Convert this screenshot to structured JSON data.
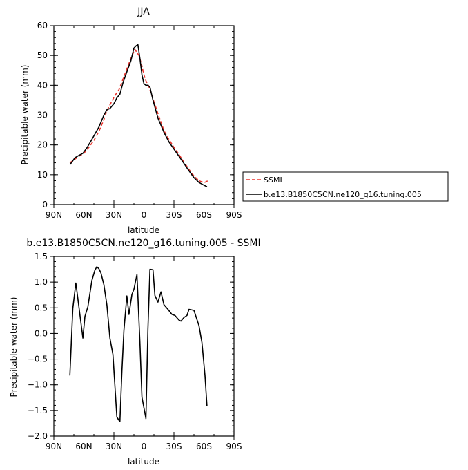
{
  "chart_data": [
    {
      "type": "line",
      "title": "JJA",
      "xlabel": "latitude",
      "ylabel": "Precipitable water (mm)",
      "xlim": [
        90,
        -90
      ],
      "ylim": [
        0,
        60
      ],
      "x_tick_values": [
        90,
        60,
        30,
        0,
        -30,
        -60,
        -90
      ],
      "x_tick_labels": [
        "90N",
        "60N",
        "30N",
        "0",
        "30S",
        "60S",
        "90S"
      ],
      "y_tick_values": [
        0,
        10,
        20,
        30,
        40,
        50,
        60
      ],
      "y_tick_labels": [
        "0",
        "10",
        "20",
        "30",
        "40",
        "50",
        "60"
      ],
      "legend_position": "right",
      "series": [
        {
          "name": "SSMI",
          "color": "#e8322b",
          "dash": "dashed",
          "x": [
            74,
            70,
            65,
            60,
            55,
            50,
            45,
            40,
            37,
            33,
            29,
            25,
            21,
            17,
            13,
            9,
            5,
            2,
            0,
            -2,
            -5,
            -10,
            -15,
            -20,
            -25,
            -30,
            -35,
            -40,
            -45,
            -50,
            -55,
            -58,
            -60,
            -63,
            -65
          ],
          "y": [
            14.0,
            15.0,
            16.2,
            17.2,
            19.2,
            21.5,
            24.5,
            28.5,
            31.5,
            34.0,
            36.5,
            38.5,
            42.0,
            45.5,
            49.0,
            52.0,
            50.0,
            46.5,
            43.5,
            41.5,
            39.5,
            34.5,
            29.5,
            24.8,
            21.8,
            19.2,
            16.8,
            14.2,
            11.8,
            9.6,
            8.0,
            7.6,
            7.3,
            7.8,
            8.4
          ]
        },
        {
          "name": "b.e13.B1850C5CN.ne120_g16.tuning.005",
          "color": "#000000",
          "dash": "solid",
          "x": [
            74,
            72,
            69,
            65,
            61,
            57,
            53,
            49,
            45,
            40,
            37,
            34,
            30,
            27,
            24,
            21,
            17,
            13,
            10,
            8,
            6,
            4,
            2,
            0,
            -2,
            -4,
            -6,
            -9,
            -14,
            -20,
            -25,
            -30,
            -35,
            -40,
            -45,
            -50,
            -55,
            -60,
            -63
          ],
          "y": [
            13.4,
            14.2,
            15.7,
            16.5,
            17.2,
            19.0,
            21.3,
            23.6,
            26.0,
            30.0,
            31.8,
            32.2,
            33.8,
            35.8,
            37.0,
            40.8,
            44.5,
            48.2,
            52.5,
            53.2,
            53.6,
            49.0,
            43.5,
            40.5,
            40.0,
            40.0,
            39.4,
            35.0,
            29.0,
            24.2,
            21.0,
            18.6,
            16.2,
            13.8,
            11.3,
            9.0,
            7.4,
            6.5,
            6.0
          ]
        }
      ]
    },
    {
      "type": "line",
      "title": "b.e13.B1850C5CN.ne120_g16.tuning.005 - SSMI",
      "xlabel": "latitude",
      "ylabel": "Precipitable water (mm)",
      "xlim": [
        90,
        -90
      ],
      "ylim": [
        -2.0,
        1.5
      ],
      "x_tick_values": [
        90,
        60,
        30,
        0,
        -30,
        -60,
        -90
      ],
      "x_tick_labels": [
        "90N",
        "60N",
        "30N",
        "0",
        "30S",
        "60S",
        "90S"
      ],
      "y_tick_values": [
        1.5,
        1.0,
        0.5,
        0.0,
        -0.5,
        -1.0,
        -1.5,
        -2.0
      ],
      "y_tick_labels": [
        "1.5",
        "1.0",
        "0.5",
        "0.0",
        "−0.5",
        "−1.0",
        "−1.5",
        "−2.0"
      ],
      "series": [
        {
          "color": "#000000",
          "dash": "solid",
          "x": [
            74,
            71,
            68,
            65,
            61,
            59,
            56,
            52,
            49,
            47,
            45,
            43,
            40,
            37,
            34,
            31,
            27,
            24,
            22,
            20,
            17,
            15,
            12,
            10,
            7,
            4,
            2,
            -2,
            -4,
            -6,
            -9,
            -11,
            -14,
            -17,
            -20,
            -24,
            -28,
            -31,
            -35,
            -37,
            -40,
            -43,
            -45,
            -50,
            -55,
            -58,
            -61,
            -63
          ],
          "y": [
            -0.82,
            0.49,
            0.98,
            0.52,
            -0.09,
            0.33,
            0.52,
            1.03,
            1.23,
            1.3,
            1.26,
            1.18,
            0.95,
            0.55,
            -0.09,
            -0.41,
            -1.63,
            -1.72,
            -0.74,
            0.06,
            0.73,
            0.37,
            0.76,
            0.86,
            1.15,
            -0.18,
            -1.24,
            -1.66,
            0.08,
            1.25,
            1.24,
            0.74,
            0.61,
            0.81,
            0.56,
            0.47,
            0.37,
            0.35,
            0.26,
            0.24,
            0.31,
            0.35,
            0.47,
            0.45,
            0.15,
            -0.18,
            -0.82,
            -1.42
          ]
        }
      ]
    }
  ]
}
